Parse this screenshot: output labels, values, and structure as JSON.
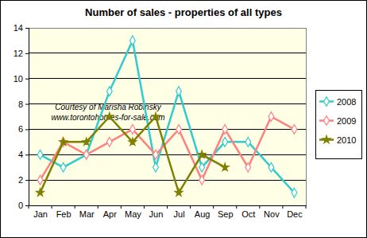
{
  "chart_data": {
    "type": "line",
    "title": "Number of sales - properties of all types",
    "annotations": [
      "Courtesy of Marisha Robinsky",
      "www.torontohomes-for-sale.com"
    ],
    "categories": [
      "Jan",
      "Feb",
      "Mar",
      "Apr",
      "May",
      "Jun",
      "Jul",
      "Aug",
      "Sep",
      "Oct",
      "Nov",
      "Dec"
    ],
    "series": [
      {
        "name": "2008",
        "color": "#33cccc",
        "marker": "diamond",
        "values": [
          4,
          3,
          4,
          9,
          13,
          3,
          9,
          3,
          5,
          5,
          3,
          1
        ]
      },
      {
        "name": "2009",
        "color": "#ff8080",
        "marker": "diamond",
        "values": [
          2,
          5,
          4,
          5,
          6,
          4,
          6,
          2,
          6,
          3,
          7,
          6
        ]
      },
      {
        "name": "2010",
        "color": "#808000",
        "marker": "star",
        "values": [
          1,
          5,
          5,
          7,
          5,
          7,
          1,
          4,
          3,
          null,
          null,
          null
        ]
      }
    ],
    "ylim": [
      0,
      14
    ],
    "yticks": [
      0,
      2,
      4,
      6,
      8,
      10,
      12,
      14
    ],
    "grid": true,
    "legend": "right"
  }
}
